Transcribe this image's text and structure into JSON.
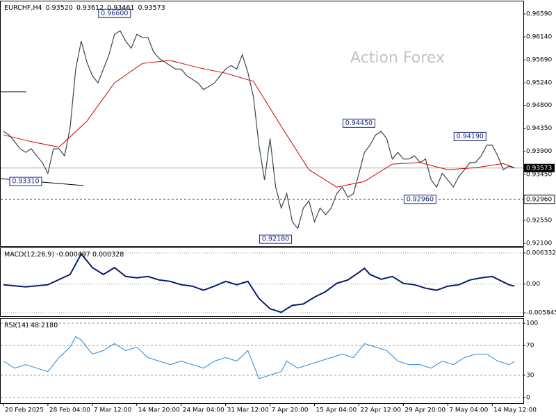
{
  "chart_data": [
    {
      "type": "line",
      "title": "EURCHF,H4",
      "ohlc": [
        {
          "value": 0.9352,
          "label": "0.93520"
        },
        0.93612,
        0.93461,
        0.93573
      ],
      "watermark": "Action Forex",
      "xlim": [
        -0.5,
        93.6
      ],
      "ylim": [
        0.92046,
        0.96835
      ],
      "yticks": [
        {
          "value": 0.9659,
          "label": "0.96590"
        },
        {
          "value": 0.9614,
          "label": "0.96140"
        },
        {
          "value": 0.9569,
          "label": "0.95690"
        },
        {
          "value": 0.9524,
          "label": "0.95240"
        },
        {
          "value": 0.948,
          "label": "0.94800"
        },
        {
          "value": 0.9435,
          "label": "0.94350"
        },
        {
          "value": 0.939,
          "label": "0.93900"
        },
        {
          "value": 0.9345,
          "label": "0.93450"
        },
        {
          "value": 0.9255,
          "label": "0.92550"
        },
        {
          "value": 0.921,
          "label": "0.92100"
        }
      ],
      "current_price": 0.93573,
      "level": {
        "value": 0.9296,
        "label": "0.92960"
      },
      "series": [
        {
          "name": "EURCHF",
          "color": "#37474f",
          "values": [
            0.9429,
            0.9422,
            0.9409,
            0.9395,
            0.9388,
            0.9395,
            0.9381,
            0.9368,
            0.9347,
            0.9395,
            0.9395,
            0.9381,
            0.9436,
            0.9551,
            0.9606,
            0.9565,
            0.9538,
            0.9524,
            0.9551,
            0.9579,
            0.9619,
            0.9626,
            0.9606,
            0.9592,
            0.9619,
            0.9613,
            0.9613,
            0.9585,
            0.9572,
            0.9565,
            0.9558,
            0.9551,
            0.9551,
            0.9538,
            0.9531,
            0.9524,
            0.9511,
            0.9517,
            0.9524,
            0.9538,
            0.9551,
            0.9558,
            0.9551,
            0.9579,
            0.9545,
            0.9497,
            0.9402,
            0.9334,
            0.9415,
            0.932,
            0.9279,
            0.9307,
            0.9252,
            0.9239,
            0.9279,
            0.9293,
            0.9252,
            0.9279,
            0.9266,
            0.9279,
            0.9307,
            0.932,
            0.93,
            0.9307,
            0.9347,
            0.9388,
            0.9402,
            0.9422,
            0.9429,
            0.9415,
            0.9375,
            0.9388,
            0.9375,
            0.9375,
            0.9381,
            0.9368,
            0.9375,
            0.9334,
            0.932,
            0.9347,
            0.9334,
            0.932,
            0.9341,
            0.9354,
            0.9368,
            0.9368,
            0.9381,
            0.9402,
            0.9402,
            0.9381,
            0.9354,
            0.9361,
            0.93573
          ]
        },
        {
          "name": "MA",
          "color": "#d40000",
          "x": [
            0,
            5,
            10,
            15,
            20,
            25,
            30,
            35,
            40,
            45,
            50,
            55,
            60,
            65,
            70,
            75,
            80,
            85,
            90,
            92
          ],
          "values": [
            0.9422,
            0.9409,
            0.9398,
            0.9449,
            0.9524,
            0.9562,
            0.9568,
            0.9554,
            0.9543,
            0.9527,
            0.9439,
            0.9354,
            0.932,
            0.9331,
            0.9365,
            0.9368,
            0.9354,
            0.9358,
            0.9366,
            0.9358
          ]
        }
      ],
      "annotations": [
        {
          "x": 20,
          "value": 0.966,
          "label": "0.96600"
        },
        {
          "x": 4,
          "value": 0.9331,
          "label": "0.93310"
        },
        {
          "x": 64,
          "value": 0.9445,
          "label": "0.94450"
        },
        {
          "x": 49,
          "value": 0.9218,
          "label": "0.92180"
        },
        {
          "x": 84,
          "value": 0.9419,
          "label": "0.94190"
        },
        {
          "x": 75,
          "value": 0.9296,
          "label": "0.92960"
        }
      ]
    },
    {
      "type": "line",
      "title": "MACD(12,26,9) -0.000497 0.000328",
      "xlim": [
        -0.5,
        93.6
      ],
      "ylim": [
        -0.00655,
        0.00732
      ],
      "yticks": [
        0.006332,
        {
          "value": 0,
          "label": "0.00"
        },
        -0.005845
      ],
      "series": [
        {
          "name": "MACD",
          "color": "#0a1a6e",
          "x": [
            0,
            4,
            8,
            12,
            14,
            16,
            18,
            20,
            22,
            24,
            26,
            28,
            30,
            32,
            34,
            36,
            38,
            40,
            42,
            44,
            46,
            48,
            50,
            52,
            54,
            56,
            58,
            60,
            62,
            64,
            65,
            66,
            68,
            70,
            72,
            74,
            76,
            78,
            80,
            82,
            84,
            86,
            88,
            91,
            92
          ],
          "values": [
            -0.00014,
            -0.00056,
            -0.00014,
            0.00196,
            0.00616,
            0.00336,
            0.00196,
            0.00336,
            0.00154,
            0.00126,
            0.00154,
            0.00084,
            0.00056,
            -0.00014,
            -0.00042,
            -0.00126,
            -0.00042,
            0.00056,
            -0.00014,
            0.00056,
            -0.00294,
            -0.00504,
            -0.00574,
            -0.00434,
            -0.00406,
            -0.00266,
            -0.00154,
            0.00014,
            0.00084,
            0.00238,
            0.00322,
            0.00196,
            0.00098,
            0.00154,
            0.00014,
            -0.00014,
            -0.00084,
            -0.00126,
            -0.00042,
            -0.00014,
            0.00084,
            0.00126,
            0.00154,
            -0.00014,
            -0.00042
          ]
        }
      ]
    },
    {
      "type": "line",
      "title": "RSI(14) 48.2180",
      "xlim": [
        -0.5,
        93.6
      ],
      "ylim": [
        -7.5,
        105.7
      ],
      "yticks": [
        100,
        70,
        30,
        0
      ],
      "xticks": [
        {
          "value": 0,
          "label": "20 Feb 2025"
        },
        {
          "value": 8,
          "label": "28 Feb 04:00"
        },
        {
          "value": 16,
          "label": "7 Mar 12:00"
        },
        {
          "value": 24,
          "label": "14 Mar 20:00"
        },
        {
          "value": 32,
          "label": "24 Mar 04:00"
        },
        {
          "value": 40,
          "label": "31 Mar 12:00"
        },
        {
          "value": 48,
          "label": "7 Apr 20:00"
        },
        {
          "value": 56,
          "label": "15 Apr 04:00"
        },
        {
          "value": 64,
          "label": "22 Apr 12:00"
        },
        {
          "value": 72,
          "label": "29 Apr 20:00"
        },
        {
          "value": 80,
          "label": "7 May 04:00"
        },
        {
          "value": 88,
          "label": "14 May 12:00"
        }
      ],
      "series": [
        {
          "name": "RSI",
          "color": "#1e88e5",
          "x": [
            0,
            2,
            4,
            6,
            8,
            10,
            12,
            13,
            14,
            16,
            18,
            20,
            22,
            24,
            26,
            28,
            30,
            32,
            34,
            36,
            38,
            40,
            42,
            44,
            46,
            48,
            50,
            51,
            53,
            55,
            57,
            59,
            61,
            63,
            65,
            67,
            69,
            71,
            73,
            75,
            77,
            79,
            81,
            83,
            85,
            87,
            89,
            91,
            92
          ],
          "values": [
            49.1,
            39.6,
            44.3,
            39.6,
            34.9,
            53.8,
            67.9,
            82.1,
            77.4,
            58.5,
            63.2,
            72.6,
            63.2,
            67.9,
            53.8,
            49.1,
            44.3,
            49.1,
            44.3,
            39.6,
            49.1,
            53.8,
            49.1,
            63.2,
            25.5,
            30.2,
            34.9,
            49.1,
            39.6,
            44.3,
            49.1,
            53.8,
            58.5,
            53.8,
            72.6,
            67.9,
            63.2,
            49.1,
            44.3,
            44.3,
            39.6,
            49.1,
            44.3,
            53.8,
            58.5,
            58.5,
            49.1,
            44.3,
            48.218
          ]
        }
      ]
    }
  ]
}
